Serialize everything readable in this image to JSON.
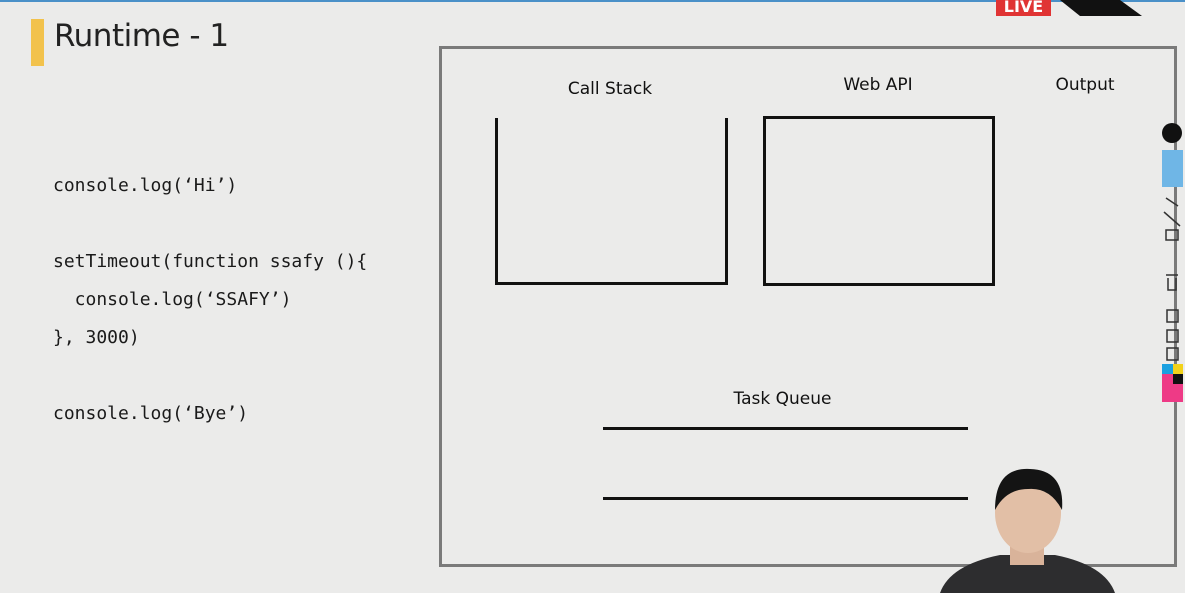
{
  "slide": {
    "title": "Runtime - 1",
    "code": [
      "console.log(‘Hi’)",
      "setTimeout(function ssafy (){",
      "  console.log(‘SSAFY’)",
      "}, 3000)",
      "console.log(‘Bye’)"
    ],
    "diagram": {
      "call_stack": "Call Stack",
      "web_api": "Web API",
      "output": "Output",
      "task_queue": "Task Queue"
    }
  },
  "overlay": {
    "live_badge": "LIVE"
  }
}
